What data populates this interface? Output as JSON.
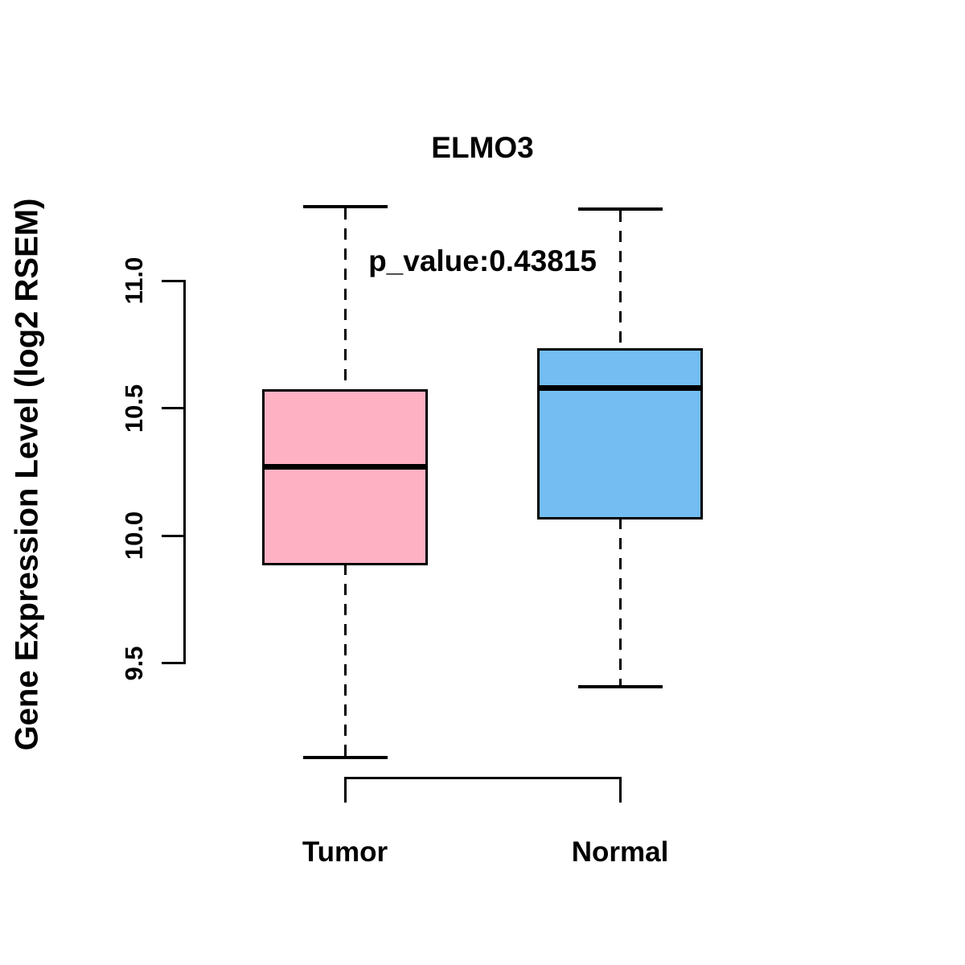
{
  "title": {
    "gene": "ELMO3",
    "p_value_line": "p_value:0.43815"
  },
  "y_axis": {
    "label": "Gene Expression Level (log2 RSEM)",
    "tick_labels": [
      "11.0",
      "10.5",
      "10.0",
      "9.5"
    ]
  },
  "x_axis": {
    "categories": [
      "Tumor",
      "Normal"
    ]
  },
  "colors": {
    "tumor_fill": "#FFB1C4",
    "normal_fill": "#74BDF2",
    "line": "#000000",
    "background": "#FFFFFF"
  },
  "chart_data": {
    "type": "box",
    "title": "ELMO3",
    "subtitle": "p_value:0.43815",
    "ylabel": "Gene Expression Level (log2 RSEM)",
    "xlabel": "",
    "categories": [
      "Tumor",
      "Normal"
    ],
    "y_ticks": [
      9.5,
      10.0,
      10.5,
      11.0
    ],
    "ylim": [
      9.0,
      11.45
    ],
    "grid": false,
    "legend_position": "none",
    "series": [
      {
        "name": "Tumor",
        "fill_color": "#FFB1C4",
        "whisker_low": 9.13,
        "q1": 9.89,
        "median": 10.27,
        "q3": 10.57,
        "whisker_high": 11.29
      },
      {
        "name": "Normal",
        "fill_color": "#74BDF2",
        "whisker_low": 9.41,
        "q1": 10.07,
        "median": 10.58,
        "q3": 10.73,
        "whisker_high": 11.28
      }
    ]
  }
}
